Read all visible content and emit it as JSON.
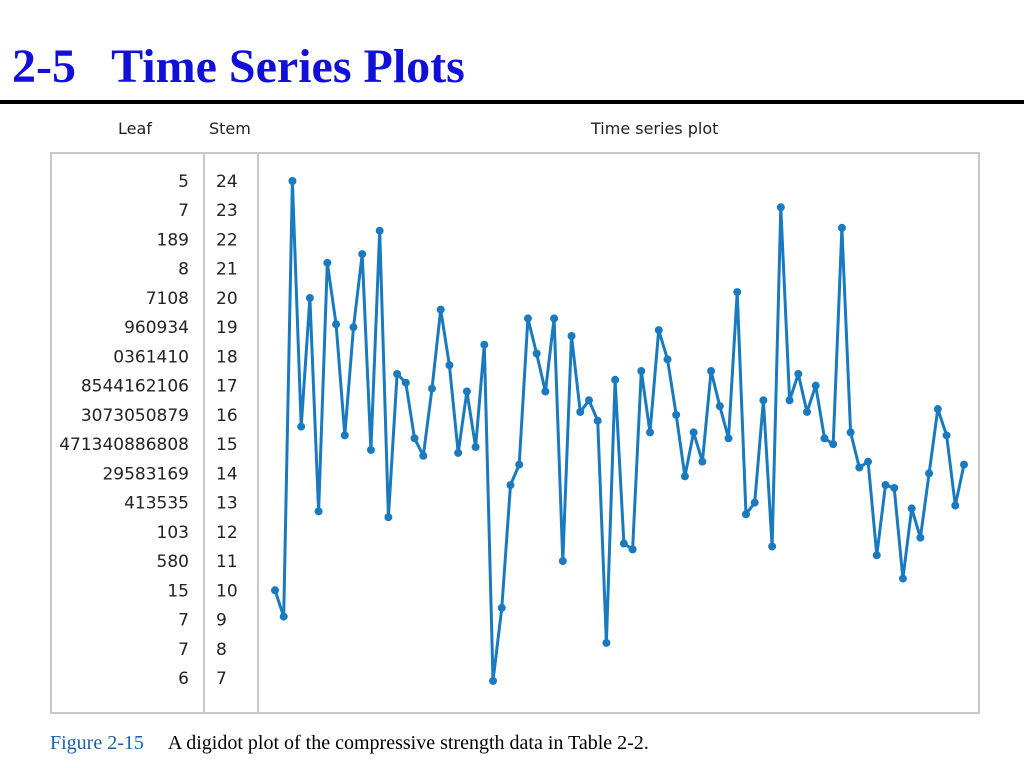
{
  "slide": {
    "title": "2-5   Time Series Plots"
  },
  "headers": {
    "leaf": "Leaf",
    "stem": "Stem",
    "plot": "Time series plot"
  },
  "caption": {
    "label": "Figure 2-15",
    "text": "A digidot plot of the compressive strength data in Table 2-2."
  },
  "colors": {
    "title": "#1010d8",
    "series": "#1a7abf",
    "frame": "#c8c8c8",
    "caption_label": "#1a5fa8"
  },
  "stem_leaf": [
    {
      "stem": "24",
      "leaf": "5"
    },
    {
      "stem": "23",
      "leaf": "7"
    },
    {
      "stem": "22",
      "leaf": "189"
    },
    {
      "stem": "21",
      "leaf": "8"
    },
    {
      "stem": "20",
      "leaf": "7108"
    },
    {
      "stem": "19",
      "leaf": "960934"
    },
    {
      "stem": "18",
      "leaf": "0361410"
    },
    {
      "stem": "17",
      "leaf": "8544162106"
    },
    {
      "stem": "16",
      "leaf": "3073050879"
    },
    {
      "stem": "15",
      "leaf": "471340886808"
    },
    {
      "stem": "14",
      "leaf": "29583169"
    },
    {
      "stem": "13",
      "leaf": "413535"
    },
    {
      "stem": "12",
      "leaf": "103"
    },
    {
      "stem": "11",
      "leaf": "580"
    },
    {
      "stem": "10",
      "leaf": "15"
    },
    {
      "stem": "9",
      "leaf": "7"
    },
    {
      "stem": "8",
      "leaf": "7"
    },
    {
      "stem": "7",
      "leaf": "6"
    }
  ],
  "chart_data": {
    "type": "line",
    "title": "Time series plot",
    "xlabel": "",
    "ylabel": "",
    "ylim": [
      7,
      24
    ],
    "grid": false,
    "series": [
      {
        "values": [
          10.0,
          9.1,
          24.0,
          15.6,
          20.0,
          12.7,
          21.2,
          19.1,
          15.3,
          19.0,
          21.5,
          14.8,
          22.3,
          12.5,
          17.4,
          17.1,
          15.2,
          14.6,
          16.9,
          19.6,
          17.7,
          14.7,
          16.8,
          14.9,
          18.4,
          6.9,
          9.4,
          13.6,
          14.3,
          19.3,
          18.1,
          16.8,
          19.3,
          11.0,
          18.7,
          16.1,
          16.5,
          15.8,
          8.2,
          17.2,
          11.6,
          11.4,
          17.5,
          15.4,
          18.9,
          17.9,
          16.0,
          13.9,
          15.4,
          14.4,
          17.5,
          16.3,
          15.2,
          20.2,
          12.6,
          13.0,
          16.5,
          11.5,
          23.1,
          16.5,
          17.4,
          16.1,
          17.0,
          15.2,
          15.0,
          22.4,
          15.4,
          14.2,
          14.4,
          11.2,
          13.6,
          13.5,
          10.4,
          12.8,
          11.8,
          14.0,
          16.2,
          15.3,
          12.9,
          14.3
        ]
      }
    ]
  }
}
